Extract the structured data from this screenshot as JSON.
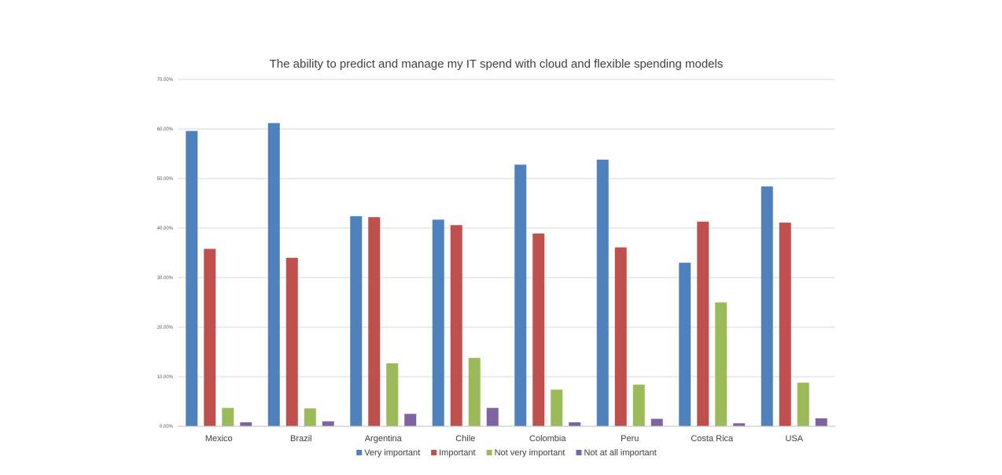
{
  "chart_data": {
    "type": "bar",
    "title": "The ability to predict and manage my IT spend with cloud and flexible spending models",
    "xlabel": "",
    "ylabel": "",
    "ylim": [
      0,
      70
    ],
    "yticks": [
      "0.00%",
      "10.00%",
      "20.00%",
      "30.00%",
      "40.00%",
      "50.00%",
      "60.00%",
      "70.00%"
    ],
    "grid": true,
    "legend_position": "bottom",
    "categories": [
      "Mexico",
      "Brazil",
      "Argentina",
      "Chile",
      "Colombia",
      "Peru",
      "Costa Rica",
      "USA"
    ],
    "series": [
      {
        "name": "Very important",
        "color": "#4f81bd",
        "values": [
          59.6,
          61.2,
          42.4,
          41.7,
          52.8,
          53.8,
          33.0,
          48.4
        ]
      },
      {
        "name": "Important",
        "color": "#c0504d",
        "values": [
          35.8,
          34.0,
          42.2,
          40.6,
          38.9,
          36.1,
          41.3,
          41.1
        ]
      },
      {
        "name": "Not very important",
        "color": "#9bbb59",
        "values": [
          3.7,
          3.6,
          12.7,
          13.8,
          7.4,
          8.4,
          25.0,
          8.8
        ]
      },
      {
        "name": "Not at all important",
        "color": "#8064a2",
        "values": [
          0.8,
          1.0,
          2.5,
          3.7,
          0.8,
          1.5,
          0.6,
          1.6
        ]
      }
    ]
  }
}
